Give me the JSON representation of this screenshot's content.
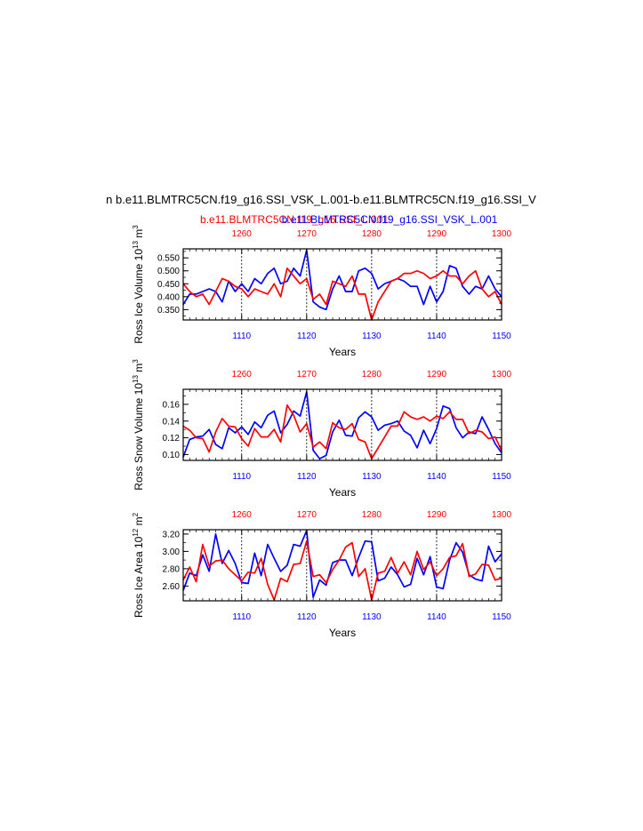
{
  "figure": {
    "main_title": "n b.e11.BLMTRC5CN.f19_g16.SSI_VSK_L.001-b.e11.BLMTRC5CN.f19_g16.SSI_V",
    "case_red": "b.e11.BLMTRC5CN.f19_g16.SSI_L.001",
    "case_blue": "b.e11.BLMTRC5CN.f19_g16.SSI_VSK_L.001",
    "colors": {
      "red": "#ff0000",
      "blue": "#0000ff",
      "axis": "#000000"
    }
  },
  "chart_data": [
    {
      "type": "line",
      "ylabel": "Ross Ice Volume 10",
      "ylabel_exp": "13",
      "ylabel_unit": " m",
      "ylabel_unit_exp": "3",
      "xlabel": "Years",
      "ylim": [
        0.31,
        0.585
      ],
      "yticks": [
        0.35,
        0.4,
        0.45,
        0.5,
        0.55
      ],
      "ytick_labels": [
        "0.350",
        "0.400",
        "0.450",
        "0.500",
        "0.550"
      ],
      "bottom_axis": {
        "lim": [
          1101,
          1150
        ],
        "ticks": [
          1110,
          1120,
          1130,
          1140,
          1150
        ],
        "labels": [
          "1110",
          "1120",
          "1130",
          "1140",
          "1150"
        ],
        "color": "#0000ff"
      },
      "top_axis": {
        "lim": [
          1251,
          1300
        ],
        "ticks": [
          1260,
          1270,
          1280,
          1290,
          1300
        ],
        "labels": [
          "1260",
          "1270",
          "1280",
          "1290",
          "1300"
        ],
        "color": "#ff0000"
      },
      "grid_x": [
        1110,
        1120,
        1130,
        1140
      ],
      "series": [
        {
          "color": "#0000ff",
          "x_axis": "bottom",
          "x_start": 1101,
          "values": [
            0.37,
            0.41,
            0.41,
            0.42,
            0.43,
            0.42,
            0.38,
            0.46,
            0.42,
            0.45,
            0.42,
            0.47,
            0.45,
            0.49,
            0.51,
            0.45,
            0.46,
            0.51,
            0.48,
            0.58,
            0.38,
            0.36,
            0.35,
            0.43,
            0.48,
            0.42,
            0.42,
            0.5,
            0.51,
            0.49,
            0.43,
            0.45,
            0.46,
            0.47,
            0.46,
            0.44,
            0.44,
            0.37,
            0.44,
            0.38,
            0.42,
            0.52,
            0.51,
            0.44,
            0.41,
            0.44,
            0.43,
            0.48,
            0.43,
            0.4
          ]
        },
        {
          "color": "#ff0000",
          "x_axis": "top",
          "x_start": 1251,
          "values": [
            0.45,
            0.42,
            0.4,
            0.41,
            0.37,
            0.42,
            0.47,
            0.46,
            0.44,
            0.43,
            0.4,
            0.43,
            0.42,
            0.41,
            0.45,
            0.4,
            0.51,
            0.48,
            0.45,
            0.47,
            0.39,
            0.41,
            0.37,
            0.46,
            0.45,
            0.44,
            0.48,
            0.41,
            0.41,
            0.31,
            0.38,
            0.42,
            0.46,
            0.47,
            0.49,
            0.49,
            0.5,
            0.49,
            0.47,
            0.48,
            0.5,
            0.48,
            0.48,
            0.45,
            0.48,
            0.5,
            0.43,
            0.4,
            0.42,
            0.37
          ]
        }
      ]
    },
    {
      "type": "line",
      "ylabel": "Ross Snow Volume 10",
      "ylabel_exp": "13",
      "ylabel_unit": " m",
      "ylabel_unit_exp": "3",
      "xlabel": "Years",
      "ylim": [
        0.093,
        0.178
      ],
      "yticks": [
        0.1,
        0.12,
        0.14,
        0.16
      ],
      "ytick_labels": [
        "0.10",
        "0.12",
        "0.14",
        "0.16"
      ],
      "bottom_axis": {
        "lim": [
          1101,
          1150
        ],
        "ticks": [
          1110,
          1120,
          1130,
          1140,
          1150
        ],
        "labels": [
          "1110",
          "1120",
          "1130",
          "1140",
          "1150"
        ],
        "color": "#0000ff"
      },
      "top_axis": {
        "lim": [
          1251,
          1300
        ],
        "ticks": [
          1260,
          1270,
          1280,
          1290,
          1300
        ],
        "labels": [
          "1260",
          "1270",
          "1280",
          "1290",
          "1300"
        ],
        "color": "#ff0000"
      },
      "grid_x": [
        1110,
        1120,
        1130,
        1140
      ],
      "series": [
        {
          "color": "#0000ff",
          "x_axis": "bottom",
          "x_start": 1101,
          "values": [
            0.097,
            0.118,
            0.121,
            0.122,
            0.13,
            0.112,
            0.107,
            0.132,
            0.126,
            0.133,
            0.124,
            0.139,
            0.132,
            0.147,
            0.152,
            0.126,
            0.136,
            0.152,
            0.146,
            0.175,
            0.105,
            0.095,
            0.099,
            0.127,
            0.141,
            0.123,
            0.122,
            0.144,
            0.151,
            0.145,
            0.129,
            0.135,
            0.137,
            0.14,
            0.128,
            0.123,
            0.108,
            0.129,
            0.113,
            0.131,
            0.158,
            0.155,
            0.132,
            0.12,
            0.127,
            0.125,
            0.145,
            0.13,
            0.113,
            0.102
          ]
        },
        {
          "color": "#ff0000",
          "x_axis": "top",
          "x_start": 1251,
          "values": [
            0.134,
            0.129,
            0.12,
            0.119,
            0.103,
            0.127,
            0.143,
            0.134,
            0.133,
            0.119,
            0.11,
            0.131,
            0.121,
            0.121,
            0.13,
            0.115,
            0.159,
            0.147,
            0.127,
            0.137,
            0.109,
            0.115,
            0.107,
            0.138,
            0.132,
            0.13,
            0.137,
            0.118,
            0.115,
            0.095,
            0.108,
            0.121,
            0.134,
            0.134,
            0.151,
            0.145,
            0.142,
            0.145,
            0.14,
            0.146,
            0.143,
            0.151,
            0.142,
            0.142,
            0.125,
            0.129,
            0.127,
            0.119,
            0.121,
            0.105
          ]
        }
      ]
    },
    {
      "type": "line",
      "ylabel": "Ross Ice Area 10",
      "ylabel_exp": "12",
      "ylabel_unit": " m",
      "ylabel_unit_exp": "2",
      "xlabel": "Years",
      "ylim": [
        2.43,
        3.25
      ],
      "yticks": [
        2.6,
        2.8,
        3.0,
        3.2
      ],
      "ytick_labels": [
        "2.60",
        "2.80",
        "3.00",
        "3.20"
      ],
      "bottom_axis": {
        "lim": [
          1101,
          1150
        ],
        "ticks": [
          1110,
          1120,
          1130,
          1140,
          1150
        ],
        "labels": [
          "1110",
          "1120",
          "1130",
          "1140",
          "1150"
        ],
        "color": "#0000ff"
      },
      "top_axis": {
        "lim": [
          1251,
          1300
        ],
        "ticks": [
          1260,
          1270,
          1280,
          1290,
          1300
        ],
        "labels": [
          "1260",
          "1270",
          "1280",
          "1290",
          "1300"
        ],
        "color": "#ff0000"
      },
      "grid_x": [
        1110,
        1120,
        1130,
        1140
      ],
      "series": [
        {
          "color": "#0000ff",
          "x_axis": "bottom",
          "x_start": 1101,
          "values": [
            2.55,
            2.75,
            2.72,
            2.96,
            2.77,
            3.2,
            2.86,
            3.01,
            2.86,
            2.64,
            2.63,
            2.98,
            2.72,
            3.08,
            2.92,
            2.77,
            2.84,
            3.08,
            3.06,
            3.24,
            2.47,
            2.67,
            2.61,
            2.87,
            2.9,
            2.9,
            2.72,
            2.93,
            3.12,
            3.11,
            2.66,
            2.69,
            2.82,
            2.73,
            2.59,
            2.62,
            2.92,
            2.73,
            2.94,
            2.59,
            2.57,
            2.9,
            3.1,
            2.99,
            2.73,
            2.68,
            2.66,
            3.06,
            2.88,
            2.97
          ]
        },
        {
          "color": "#ff0000",
          "x_axis": "top",
          "x_start": 1251,
          "values": [
            2.67,
            2.82,
            2.65,
            3.08,
            2.83,
            2.89,
            2.9,
            2.8,
            2.73,
            2.66,
            2.76,
            2.75,
            2.92,
            2.62,
            2.44,
            2.69,
            2.65,
            2.85,
            2.86,
            3.12,
            2.71,
            2.73,
            2.64,
            2.79,
            2.9,
            3.05,
            3.1,
            2.71,
            2.8,
            2.44,
            2.75,
            2.77,
            2.93,
            2.75,
            2.88,
            2.73,
            3.0,
            2.79,
            2.88,
            2.72,
            2.8,
            2.93,
            2.95,
            3.09,
            2.71,
            2.74,
            2.85,
            2.84,
            2.67,
            2.69
          ]
        }
      ]
    }
  ]
}
